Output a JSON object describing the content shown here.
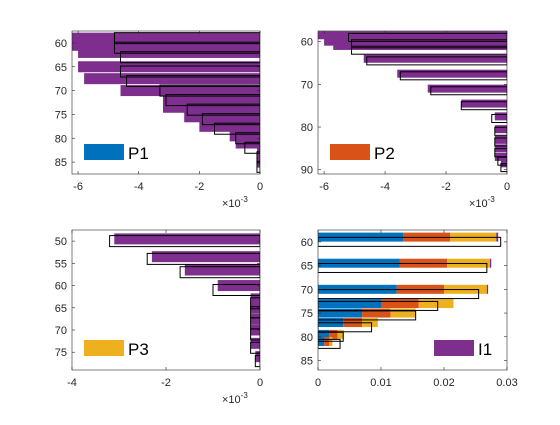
{
  "colors": {
    "P1": "#0072BD",
    "P2": "#D95319",
    "P3": "#EDB120",
    "I1": "#7E2F8E",
    "axis": "#262626",
    "outline": "#000000"
  },
  "chart_data": [
    {
      "type": "bar",
      "orientation": "horizontal",
      "panel": "top-left",
      "legend_label": "P1",
      "legend_position": "bottom-left",
      "xlim": [
        -0.0062,
        0
      ],
      "ylim": [
        57.5,
        87.5
      ],
      "y_reversed": true,
      "x_ticks": [
        -6,
        -4,
        -2,
        0
      ],
      "x_exponent": "×10^-3",
      "y_ticks": [
        60,
        65,
        70,
        75,
        80,
        85
      ],
      "bars": [
        {
          "y": 59,
          "value": -0.0062
        },
        {
          "y": 60.5,
          "value": -0.0062
        },
        {
          "y": 62,
          "value": -0.006
        },
        {
          "y": 65,
          "value": -0.006
        },
        {
          "y": 67.5,
          "value": -0.0058
        },
        {
          "y": 70,
          "value": -0.0046
        },
        {
          "y": 71.5,
          "value": -0.0032
        },
        {
          "y": 73.5,
          "value": -0.0032
        },
        {
          "y": 75.5,
          "value": -0.0025
        },
        {
          "y": 77.5,
          "value": -0.002
        },
        {
          "y": 79.5,
          "value": -0.001
        },
        {
          "y": 81,
          "value": -0.0008
        },
        {
          "y": 83,
          "value": -0.0001
        },
        {
          "y": 85,
          "value": -0.0001
        }
      ],
      "outlines": [
        {
          "y": 59,
          "value": -0.0048
        },
        {
          "y": 61,
          "value": -0.0048
        },
        {
          "y": 63,
          "value": -0.0046
        },
        {
          "y": 66,
          "value": -0.0046
        },
        {
          "y": 68,
          "value": -0.0044
        },
        {
          "y": 70,
          "value": -0.0033
        },
        {
          "y": 72,
          "value": -0.0031
        },
        {
          "y": 74,
          "value": -0.0024
        },
        {
          "y": 76,
          "value": -0.0019
        },
        {
          "y": 78,
          "value": -0.0015
        },
        {
          "y": 80,
          "value": -0.0008
        },
        {
          "y": 82,
          "value": -0.0005
        },
        {
          "y": 84,
          "value": -0.0001
        },
        {
          "y": 86,
          "value": -0.0001
        }
      ]
    },
    {
      "type": "bar",
      "orientation": "horizontal",
      "panel": "top-right",
      "legend_label": "P2",
      "legend_position": "bottom-left",
      "xlim": [
        -0.0062,
        0
      ],
      "ylim": [
        57.5,
        91
      ],
      "y_reversed": true,
      "x_ticks": [
        -6,
        -4,
        -2,
        0
      ],
      "x_exponent": "×10^-3",
      "y_ticks": [
        60,
        70,
        80,
        90
      ],
      "bars": [
        {
          "y": 58.5,
          "value": -0.0062
        },
        {
          "y": 60,
          "value": -0.006
        },
        {
          "y": 61,
          "value": -0.0057
        },
        {
          "y": 64,
          "value": -0.0047
        },
        {
          "y": 67.5,
          "value": -0.0036
        },
        {
          "y": 71,
          "value": -0.0026
        },
        {
          "y": 74.5,
          "value": -0.0015
        },
        {
          "y": 77.5,
          "value": -0.0004
        },
        {
          "y": 80.5,
          "value": -0.0004
        },
        {
          "y": 83,
          "value": -0.0004
        },
        {
          "y": 85,
          "value": -0.0004
        },
        {
          "y": 87,
          "value": -0.0004
        },
        {
          "y": 88.5,
          "value": -0.0002
        }
      ],
      "outlines": [
        {
          "y": 59,
          "value": -0.0052
        },
        {
          "y": 60.5,
          "value": -0.0051
        },
        {
          "y": 62,
          "value": -0.0051
        },
        {
          "y": 64.5,
          "value": -0.0046
        },
        {
          "y": 68,
          "value": -0.0035
        },
        {
          "y": 71.5,
          "value": -0.0025
        },
        {
          "y": 75,
          "value": -0.0015
        },
        {
          "y": 78,
          "value": -0.0005
        },
        {
          "y": 81,
          "value": -0.0004
        },
        {
          "y": 83.5,
          "value": -0.0004
        },
        {
          "y": 86,
          "value": -0.0004
        },
        {
          "y": 88,
          "value": -0.0003
        },
        {
          "y": 89.5,
          "value": -0.0002
        }
      ]
    },
    {
      "type": "bar",
      "orientation": "horizontal",
      "panel": "bottom-left",
      "legend_label": "P3",
      "legend_position": "bottom-left",
      "xlim": [
        -0.004,
        0
      ],
      "ylim": [
        47.5,
        79
      ],
      "y_reversed": true,
      "x_ticks": [
        -4,
        -2,
        0
      ],
      "x_exponent": "×10^-3",
      "y_ticks": [
        50,
        55,
        60,
        65,
        70,
        75
      ],
      "bars": [
        {
          "y": 49.5,
          "value": -0.0031
        },
        {
          "y": 53.5,
          "value": -0.0023
        },
        {
          "y": 56.5,
          "value": -0.0016
        },
        {
          "y": 60,
          "value": -0.0009
        },
        {
          "y": 63,
          "value": -0.0002
        },
        {
          "y": 65,
          "value": -0.0002
        },
        {
          "y": 67.5,
          "value": -0.0002
        },
        {
          "y": 70,
          "value": -0.0002
        },
        {
          "y": 73,
          "value": -0.0002
        },
        {
          "y": 76,
          "value": -0.0001
        }
      ],
      "outlines": [
        {
          "y": 50,
          "value": -0.0032
        },
        {
          "y": 54,
          "value": -0.0024
        },
        {
          "y": 57,
          "value": -0.0017
        },
        {
          "y": 61,
          "value": -0.001
        },
        {
          "y": 64,
          "value": -0.0002
        },
        {
          "y": 66,
          "value": -0.0002
        },
        {
          "y": 68.5,
          "value": -0.0002
        },
        {
          "y": 71,
          "value": -0.0002
        },
        {
          "y": 74,
          "value": -0.0002
        },
        {
          "y": 77,
          "value": -0.0001
        }
      ]
    },
    {
      "type": "bar",
      "orientation": "horizontal",
      "stacked": true,
      "panel": "bottom-right",
      "legend_label": "I1",
      "legend_position": "bottom-right",
      "xlim": [
        0,
        0.03
      ],
      "ylim": [
        57.5,
        87
      ],
      "y_reversed": true,
      "x_ticks": [
        0,
        0.01,
        0.02,
        0.03
      ],
      "x_tick_labels": [
        "0",
        "0.01",
        "0.02",
        "0.03"
      ],
      "y_ticks": [
        60,
        65,
        70,
        75,
        80,
        85
      ],
      "stack_order": [
        "P1",
        "P2",
        "P3",
        "I1"
      ],
      "rows": [
        {
          "y": 59,
          "P1": 0.0135,
          "P2": 0.0075,
          "P3": 0.0073,
          "I1": 0.0003
        },
        {
          "y": 64.5,
          "P1": 0.013,
          "P2": 0.0075,
          "P3": 0.0068,
          "I1": 0.0002
        },
        {
          "y": 70,
          "P1": 0.0125,
          "P2": 0.0075,
          "P3": 0.0068,
          "I1": 0.0002
        },
        {
          "y": 73,
          "P1": 0.01,
          "P2": 0.006,
          "P3": 0.0055,
          "I1": 0
        },
        {
          "y": 75,
          "P1": 0.007,
          "P2": 0.0045,
          "P3": 0.004,
          "I1": 0
        },
        {
          "y": 77,
          "P1": 0.004,
          "P2": 0.003,
          "P3": 0.0025,
          "I1": 0
        },
        {
          "y": 79.5,
          "P1": 0.0018,
          "P2": 0.0013,
          "P3": 0.001,
          "I1": 0
        },
        {
          "y": 81,
          "P1": 0.001,
          "P2": 0.0008,
          "P3": 0.0005,
          "I1": 0
        }
      ],
      "outlines": [
        {
          "y": 60,
          "value": 0.029
        },
        {
          "y": 65.5,
          "value": 0.0268
        },
        {
          "y": 71,
          "value": 0.0255
        },
        {
          "y": 73.5,
          "value": 0.019
        },
        {
          "y": 75.5,
          "value": 0.0155
        },
        {
          "y": 78,
          "value": 0.0085
        },
        {
          "y": 80,
          "value": 0.004
        },
        {
          "y": 81.5,
          "value": 0.0035
        }
      ]
    }
  ]
}
